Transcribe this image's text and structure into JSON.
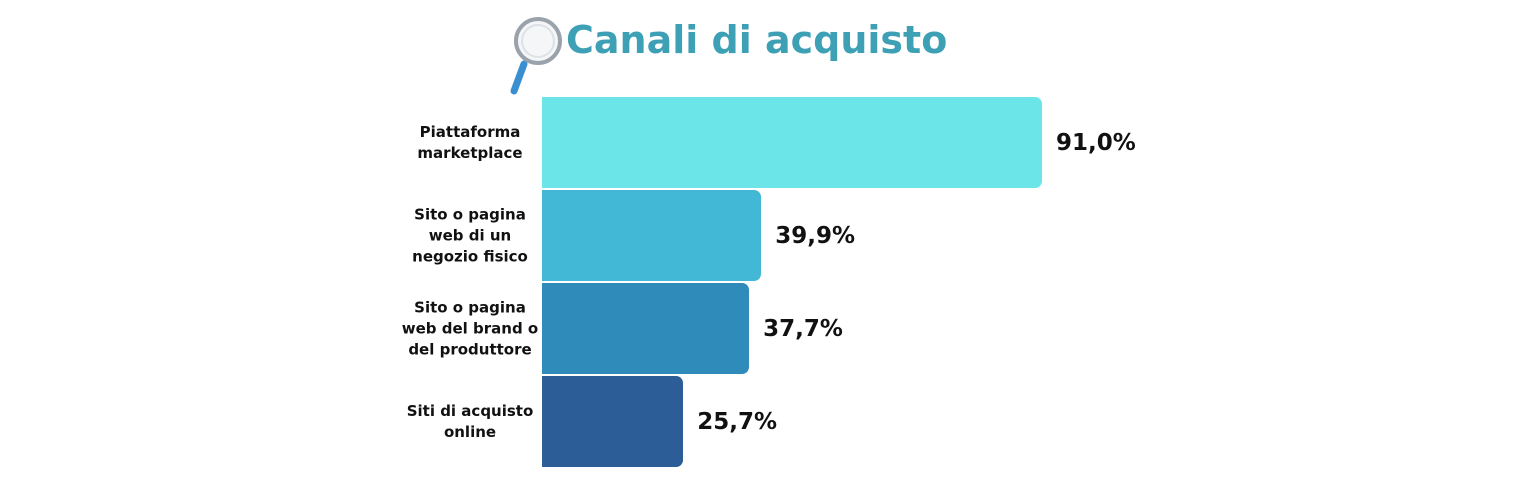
{
  "chart_data": {
    "type": "bar",
    "orientation": "horizontal",
    "title": "Canali di acquisto",
    "categories": [
      "Piattaforma marketplace",
      "Sito o pagina web di un negozio fisico",
      "Sito o pagina web del brand o del produttore",
      "Siti di acquisto online"
    ],
    "values": [
      91.0,
      39.9,
      37.7,
      25.7
    ],
    "value_labels": [
      "91,0%",
      "39,9%",
      "37,7%",
      "25,7%"
    ],
    "colors": [
      "#6ce5e8",
      "#43b8d6",
      "#2f8bb9",
      "#2d5d96"
    ]
  }
}
